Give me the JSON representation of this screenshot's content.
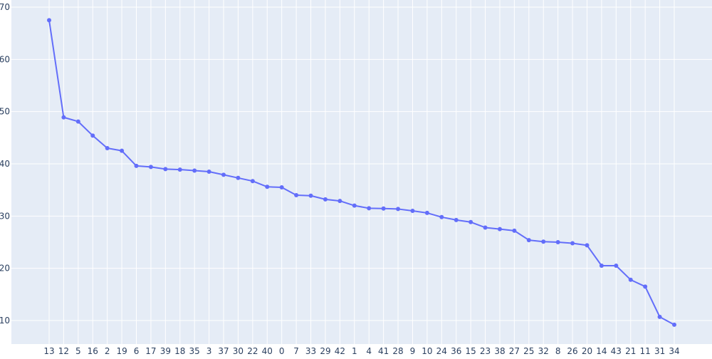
{
  "chart_data": {
    "type": "line",
    "title": "",
    "xlabel": "",
    "ylabel": "",
    "categories": [
      "13",
      "12",
      "5",
      "16",
      "2",
      "19",
      "6",
      "17",
      "39",
      "18",
      "35",
      "3",
      "37",
      "30",
      "22",
      "40",
      "0",
      "7",
      "33",
      "29",
      "42",
      "1",
      "4",
      "41",
      "28",
      "9",
      "10",
      "24",
      "36",
      "15",
      "23",
      "38",
      "27",
      "25",
      "32",
      "8",
      "26",
      "20",
      "14",
      "43",
      "21",
      "11",
      "31",
      "34"
    ],
    "series": [
      {
        "values": [
          67.5,
          48.9,
          48.1,
          45.4,
          43.0,
          42.5,
          39.6,
          39.4,
          39.0,
          38.9,
          38.7,
          38.5,
          37.9,
          37.3,
          36.7,
          35.6,
          35.5,
          34.0,
          33.9,
          33.2,
          32.9,
          32.0,
          31.5,
          31.45,
          31.35,
          31.0,
          30.6,
          29.8,
          29.25,
          28.85,
          27.8,
          27.5,
          27.2,
          25.4,
          25.1,
          25.0,
          24.8,
          24.4,
          20.5,
          20.5,
          17.8,
          16.5,
          10.7,
          9.2
        ]
      }
    ],
    "yticks": [
      10,
      20,
      30,
      40,
      50,
      60,
      70
    ],
    "ylim": [
      5,
      70
    ],
    "grid": true,
    "line_color": "#636efa",
    "plot_background": "#e5ecf6",
    "grid_color": "#ffffff"
  }
}
